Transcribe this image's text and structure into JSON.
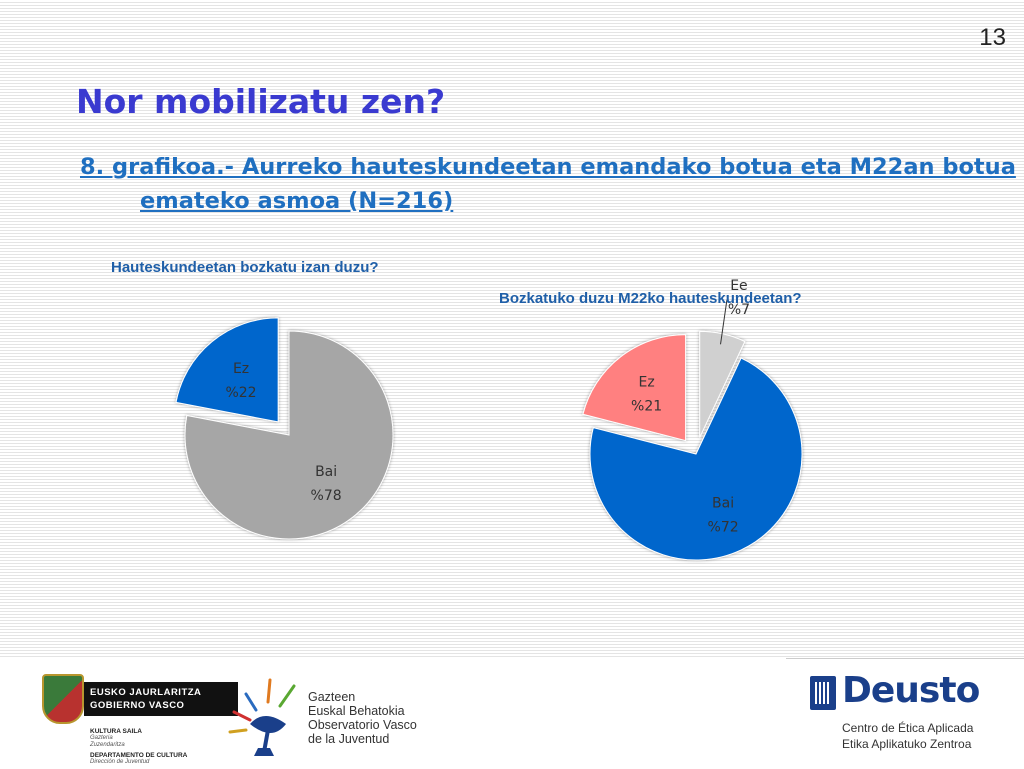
{
  "page_number": "13",
  "title": "Nor mobilizatu zen?",
  "subtitle": "8. grafikoa.- Aurreko hauteskundeetan emandako botua eta M22an botua emateko asmoa (N=216)",
  "chart_data": [
    {
      "type": "pie",
      "title": "Hauteskundeetan bozkatu izan duzu?",
      "categories": [
        "Bai",
        "Ez"
      ],
      "values": [
        78,
        22
      ],
      "value_labels": [
        "%78",
        "%22"
      ],
      "exploded": [
        "Ez"
      ],
      "colors": [
        "#a6a6a6",
        "#0066cc"
      ]
    },
    {
      "type": "pie",
      "title": "Bozkatuko duzu M22ko hauteskundeetan?",
      "categories": [
        "Ee",
        "Bai",
        "Ez"
      ],
      "values": [
        7,
        72,
        21
      ],
      "value_labels": [
        "%7",
        "%72",
        "%21"
      ],
      "exploded": [
        "Ee",
        "Ez"
      ],
      "colors": [
        "#d0d0d0",
        "#0066cc",
        "#ff8080"
      ]
    }
  ],
  "footer": {
    "gv": {
      "line1": "EUSKO JAURLARITZA",
      "line2": "GOBIERNO VASCO",
      "dept1": "KULTURA SAILA",
      "dept1a": "Gazteria",
      "dept1b": "Zuzendaritza",
      "dept2": "DEPARTAMENTO DE CULTURA",
      "dept2a": "Dirección de Juventud"
    },
    "obs": {
      "line1": "Gazteen",
      "line2": "Euskal Behatokia",
      "line3": "Observatorio Vasco",
      "line4": "de la Juventud"
    },
    "deusto": {
      "name": "Deusto",
      "line1": "Centro de Ética Aplicada",
      "line2": "Etika Aplikatuko Zentroa"
    }
  }
}
